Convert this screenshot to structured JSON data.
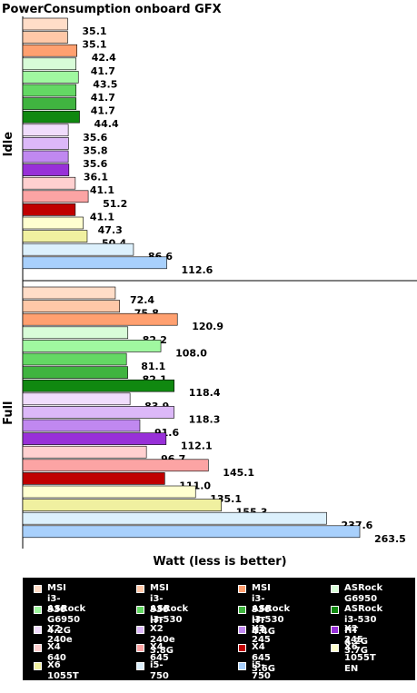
{
  "chart_data": {
    "type": "bar",
    "orientation": "horizontal",
    "title": "PowerConsumption onboard GFX",
    "xlabel": "Watt (less is better)",
    "ylabel": "",
    "groups": [
      {
        "label": "Idle",
        "values": [
          35.1,
          35.1,
          42.4,
          41.7,
          43.5,
          41.7,
          41.7,
          44.4,
          35.6,
          35.8,
          35.6,
          36.1,
          41.1,
          51.2,
          41.1,
          47.3,
          50.4,
          86.6,
          112.6
        ]
      },
      {
        "label": "Full",
        "values": [
          72.4,
          75.8,
          120.9,
          82.2,
          108.0,
          81.1,
          82.1,
          118.4,
          83.9,
          118.3,
          91.6,
          112.1,
          96.7,
          145.1,
          111.0,
          135.1,
          155.3,
          237.6,
          263.5
        ]
      }
    ],
    "series": [
      {
        "name": "MSI i3-530",
        "color": "#FFDDC8"
      },
      {
        "name": "MSI i3-530 HT",
        "color": "#FFC8A8"
      },
      {
        "name": "MSI i3-530 HT\n4.4G",
        "color": "#FFA070"
      },
      {
        "name": "ASRock G6950",
        "color": "#D8FCD8"
      },
      {
        "name": "ASRock G6950\n4.2G",
        "color": "#A0F8A0"
      },
      {
        "name": "ASRock i3-530",
        "color": "#64D864"
      },
      {
        "name": "ASRock i3-530\nHT",
        "color": "#40B440"
      },
      {
        "name": "ASRock i3-530\nHT 4.2G",
        "color": "#108810"
      },
      {
        "name": "X2 240e",
        "color": "#F0DCFC"
      },
      {
        "name": "X2 240e 3.8G",
        "color": "#DCB8F8"
      },
      {
        "name": "X2 245",
        "color": "#C088F0"
      },
      {
        "name": "X2 245 3.7G",
        "color": "#9830D8"
      },
      {
        "name": "X4 640",
        "color": "#FFD0D0"
      },
      {
        "name": "X4 645",
        "color": "#FCA4A4"
      },
      {
        "name": "X4 645 3.6G",
        "color": "#C00000"
      },
      {
        "name": "X6 1055T EN",
        "color": "#FFFFD0"
      },
      {
        "name": "X6 1055T 3.85G",
        "color": "#F0F0A0"
      },
      {
        "name": "i5-750",
        "color": "#DCF0FC"
      },
      {
        "name": "i5-750 4.1G",
        "color": "#A8D0FC"
      }
    ],
    "xlim": [
      0,
      280
    ],
    "grid": false,
    "legend_position": "bottom"
  }
}
